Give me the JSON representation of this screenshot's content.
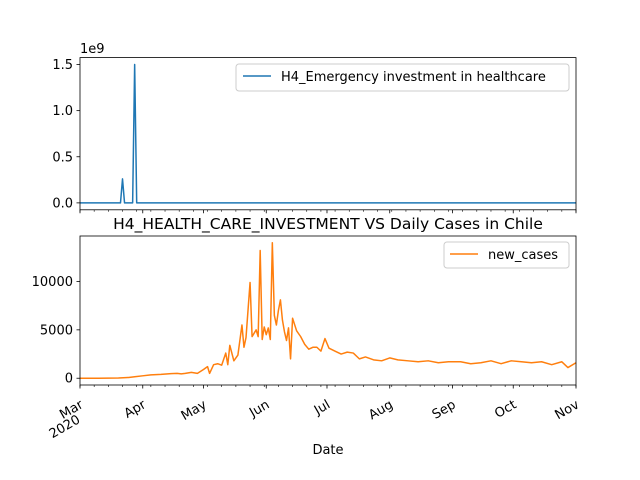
{
  "chart_data": [
    {
      "type": "line",
      "title": "",
      "xlabel": "",
      "ylabel": "",
      "y_offset_label": "1e9",
      "ylim": [
        -0.075,
        1.575
      ],
      "y_ticks": [
        0.0,
        0.5,
        1.0,
        1.5
      ],
      "y_tick_labels": [
        "0.0",
        "0.5",
        "1.0",
        "1.5"
      ],
      "x_range": [
        "2020-03-01",
        "2020-11-01"
      ],
      "legend_position": "upper right",
      "grid": false,
      "series": [
        {
          "name": "H4_Emergency investment in healthcare",
          "color": "#1f77b4",
          "note_units": "values in units of 1e9",
          "x": [
            "2020-03-01",
            "2020-03-18",
            "2020-03-21",
            "2020-03-22",
            "2020-03-23",
            "2020-03-27",
            "2020-03-28",
            "2020-03-29",
            "2020-03-30",
            "2020-11-01"
          ],
          "y": [
            0,
            0,
            0,
            0.26,
            0,
            0,
            1.5,
            0,
            0,
            0
          ]
        }
      ]
    },
    {
      "type": "line",
      "title": "H4_HEALTH_CARE_INVESTMENT VS Daily Cases in Chile",
      "xlabel": "Date",
      "ylabel": "",
      "ylim": [
        -700,
        14700
      ],
      "y_ticks": [
        0,
        5000,
        10000
      ],
      "y_tick_labels": [
        "0",
        "5000",
        "10000"
      ],
      "x_range": [
        "2020-03-01",
        "2020-11-01"
      ],
      "x_ticks": [
        "2020-03-01",
        "2020-04-01",
        "2020-05-01",
        "2020-06-01",
        "2020-07-01",
        "2020-08-01",
        "2020-09-01",
        "2020-10-01",
        "2020-11-01"
      ],
      "x_tick_labels": [
        "Mar\n2020",
        "Apr",
        "May",
        "Jun",
        "Jul",
        "Aug",
        "Sep",
        "Oct",
        "Nov"
      ],
      "legend_position": "upper right",
      "grid": false,
      "series": [
        {
          "name": "new_cases",
          "color": "#ff7f0e",
          "x": [
            "2020-03-01",
            "2020-03-10",
            "2020-03-20",
            "2020-03-25",
            "2020-03-28",
            "2020-04-01",
            "2020-04-05",
            "2020-04-10",
            "2020-04-15",
            "2020-04-18",
            "2020-04-20",
            "2020-04-22",
            "2020-04-25",
            "2020-04-28",
            "2020-05-01",
            "2020-05-03",
            "2020-05-04",
            "2020-05-06",
            "2020-05-08",
            "2020-05-10",
            "2020-05-12",
            "2020-05-13",
            "2020-05-14",
            "2020-05-16",
            "2020-05-18",
            "2020-05-20",
            "2020-05-21",
            "2020-05-22",
            "2020-05-24",
            "2020-05-25",
            "2020-05-27",
            "2020-05-28",
            "2020-05-29",
            "2020-05-30",
            "2020-05-31",
            "2020-06-01",
            "2020-06-02",
            "2020-06-03",
            "2020-06-04",
            "2020-06-05",
            "2020-06-06",
            "2020-06-07",
            "2020-06-08",
            "2020-06-09",
            "2020-06-10",
            "2020-06-11",
            "2020-06-12",
            "2020-06-13",
            "2020-06-14",
            "2020-06-16",
            "2020-06-18",
            "2020-06-20",
            "2020-06-22",
            "2020-06-24",
            "2020-06-26",
            "2020-06-28",
            "2020-06-30",
            "2020-07-02",
            "2020-07-05",
            "2020-07-08",
            "2020-07-11",
            "2020-07-14",
            "2020-07-17",
            "2020-07-20",
            "2020-07-24",
            "2020-07-28",
            "2020-08-01",
            "2020-08-05",
            "2020-08-10",
            "2020-08-15",
            "2020-08-20",
            "2020-08-25",
            "2020-08-30",
            "2020-09-05",
            "2020-09-10",
            "2020-09-15",
            "2020-09-20",
            "2020-09-25",
            "2020-09-30",
            "2020-10-05",
            "2020-10-10",
            "2020-10-15",
            "2020-10-20",
            "2020-10-25",
            "2020-10-28",
            "2020-11-01"
          ],
          "y": [
            0,
            0,
            20,
            80,
            150,
            250,
            350,
            400,
            480,
            500,
            450,
            500,
            600,
            500,
            900,
            1200,
            500,
            1400,
            1500,
            1350,
            2600,
            1400,
            3400,
            1800,
            2400,
            5500,
            3200,
            4200,
            9900,
            4300,
            5000,
            4300,
            13200,
            4000,
            5300,
            4500,
            5200,
            4000,
            14000,
            6500,
            5500,
            7000,
            8100,
            6000,
            4800,
            3900,
            5200,
            2000,
            6200,
            4900,
            4300,
            3500,
            3000,
            3200,
            3200,
            2800,
            4100,
            3100,
            2800,
            2500,
            2700,
            2600,
            2000,
            2200,
            1900,
            1800,
            2100,
            1900,
            1800,
            1700,
            1800,
            1600,
            1700,
            1700,
            1500,
            1600,
            1800,
            1500,
            1800,
            1700,
            1600,
            1700,
            1400,
            1700,
            1100,
            1600
          ]
        }
      ]
    }
  ]
}
